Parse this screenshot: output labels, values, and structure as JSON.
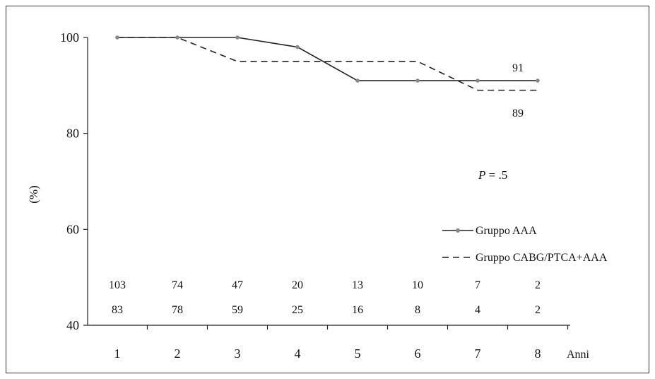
{
  "chart_data": {
    "type": "line",
    "x": [
      1,
      2,
      3,
      4,
      5,
      6,
      7,
      8
    ],
    "xlabel": "Anni",
    "ylabel": "(%)",
    "ylim": [
      40,
      100
    ],
    "yticks": [
      40,
      60,
      80,
      100
    ],
    "x_tick_labels": [
      "1",
      "2",
      "3",
      "4",
      "5",
      "6",
      "7",
      "8"
    ],
    "y_tick_labels": [
      "40",
      "60",
      "80",
      "100"
    ],
    "grid": false,
    "legend_position": "right",
    "series": [
      {
        "name": "Gruppo AAA",
        "style": "solid-with-markers",
        "color": "#222222",
        "marker_color": "#888888",
        "values": [
          100,
          100,
          100,
          98,
          91,
          91,
          91,
          91
        ],
        "end_label": "91",
        "numbers_at_risk": [
          "103",
          "74",
          "47",
          "20",
          "13",
          "10",
          "7",
          "2"
        ]
      },
      {
        "name": "Gruppo CABG/PTCA+AAA",
        "style": "dashed-step",
        "color": "#222222",
        "step_points": [
          [
            1,
            100
          ],
          [
            2,
            100
          ],
          [
            3,
            95
          ],
          [
            6,
            95
          ],
          [
            7,
            89
          ],
          [
            8,
            89
          ]
        ],
        "end_label": "89",
        "numbers_at_risk": [
          "83",
          "78",
          "59",
          "25",
          "16",
          "8",
          "4",
          "2"
        ]
      }
    ],
    "annotation": {
      "italic": "P",
      "rest": " = .5"
    }
  }
}
